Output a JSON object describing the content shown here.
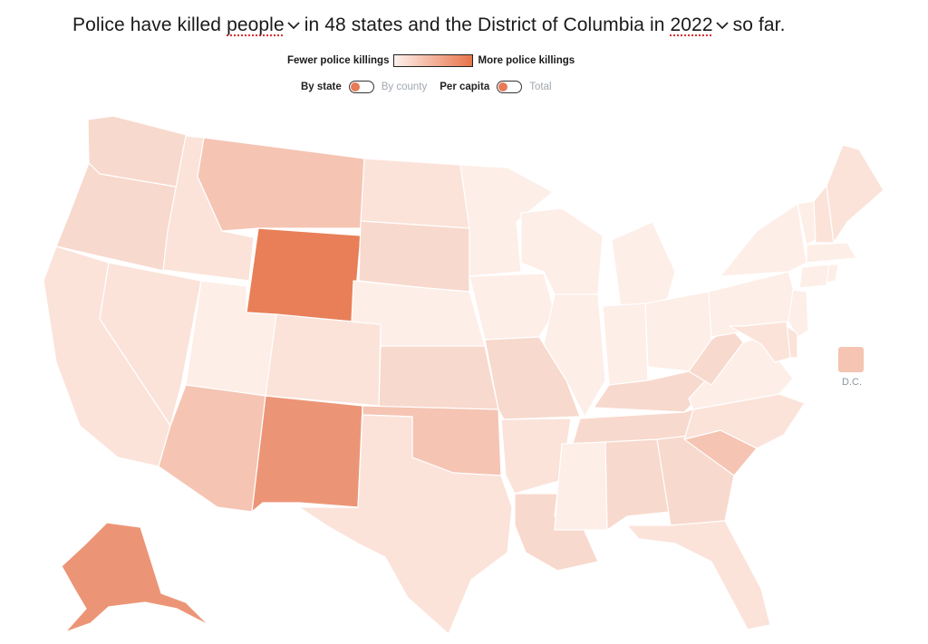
{
  "title": {
    "prefix": "Police have killed",
    "measure": "people",
    "middle": "in 48 states and the District of Columbia in",
    "year": "2022",
    "suffix": "so far."
  },
  "legend": {
    "low_label": "Fewer police killings",
    "high_label": "More police killings",
    "low_color": "#fdf1ec",
    "high_color": "#e8734a"
  },
  "toggles": [
    {
      "active": "By state",
      "inactive": "By county"
    },
    {
      "active": "Per capita",
      "inactive": "Total"
    }
  ],
  "dc": {
    "label": "D.C.",
    "color": "#f5c4b3"
  },
  "palette": {
    "lightest": "#fdeee7",
    "light": "#fbe3da",
    "medium": "#f8d9cd",
    "medium_dark": "#f5c4b3",
    "dark": "#ec9576",
    "darkest": "#e97f58"
  },
  "states": [
    {
      "name": "WA",
      "color": "#f8d9cd"
    },
    {
      "name": "OR",
      "color": "#f8d9cd"
    },
    {
      "name": "CA",
      "color": "#fbe3da"
    },
    {
      "name": "ID",
      "color": "#fbe3da"
    },
    {
      "name": "NV",
      "color": "#fbe3da"
    },
    {
      "name": "MT",
      "color": "#f5c4b3"
    },
    {
      "name": "WY",
      "color": "#e97f58"
    },
    {
      "name": "UT",
      "color": "#fdeee7"
    },
    {
      "name": "AZ",
      "color": "#f5c4b3"
    },
    {
      "name": "CO",
      "color": "#fbe3da"
    },
    {
      "name": "NM",
      "color": "#ec9576"
    },
    {
      "name": "ND",
      "color": "#fbe3da"
    },
    {
      "name": "SD",
      "color": "#f8d9cd"
    },
    {
      "name": "NE",
      "color": "#fdeee7"
    },
    {
      "name": "KS",
      "color": "#f8d9cd"
    },
    {
      "name": "OK",
      "color": "#f5c4b3"
    },
    {
      "name": "TX",
      "color": "#fbe3da"
    },
    {
      "name": "MN",
      "color": "#fdeee7"
    },
    {
      "name": "IA",
      "color": "#fdeee7"
    },
    {
      "name": "MO",
      "color": "#f8d9cd"
    },
    {
      "name": "AR",
      "color": "#fbe3da"
    },
    {
      "name": "LA",
      "color": "#f8d9cd"
    },
    {
      "name": "WI",
      "color": "#fdeee7"
    },
    {
      "name": "IL",
      "color": "#fdeee7"
    },
    {
      "name": "MI",
      "color": "#fdeee7"
    },
    {
      "name": "IN",
      "color": "#fdeee7"
    },
    {
      "name": "OH",
      "color": "#fdeee7"
    },
    {
      "name": "KY",
      "color": "#f8d9cd"
    },
    {
      "name": "TN",
      "color": "#f8d9cd"
    },
    {
      "name": "MS",
      "color": "#fdeee7"
    },
    {
      "name": "AL",
      "color": "#f8d9cd"
    },
    {
      "name": "GA",
      "color": "#f8d9cd"
    },
    {
      "name": "FL",
      "color": "#fbe3da"
    },
    {
      "name": "SC",
      "color": "#f5c4b3"
    },
    {
      "name": "NC",
      "color": "#fbe3da"
    },
    {
      "name": "VA",
      "color": "#fdeee7"
    },
    {
      "name": "WV",
      "color": "#f8d9cd"
    },
    {
      "name": "PA",
      "color": "#fdeee7"
    },
    {
      "name": "NY",
      "color": "#fdeee7"
    },
    {
      "name": "VT",
      "color": "#fdeee7"
    },
    {
      "name": "NH",
      "color": "#fbe3da"
    },
    {
      "name": "ME",
      "color": "#fbe3da"
    },
    {
      "name": "MA",
      "color": "#fdeee7"
    },
    {
      "name": "CT",
      "color": "#fdeee7"
    },
    {
      "name": "RI",
      "color": "#fdeee7"
    },
    {
      "name": "NJ",
      "color": "#fdeee7"
    },
    {
      "name": "DE",
      "color": "#fbe3da"
    },
    {
      "name": "MD",
      "color": "#fbe3da"
    },
    {
      "name": "AK",
      "color": "#ec9576"
    }
  ]
}
